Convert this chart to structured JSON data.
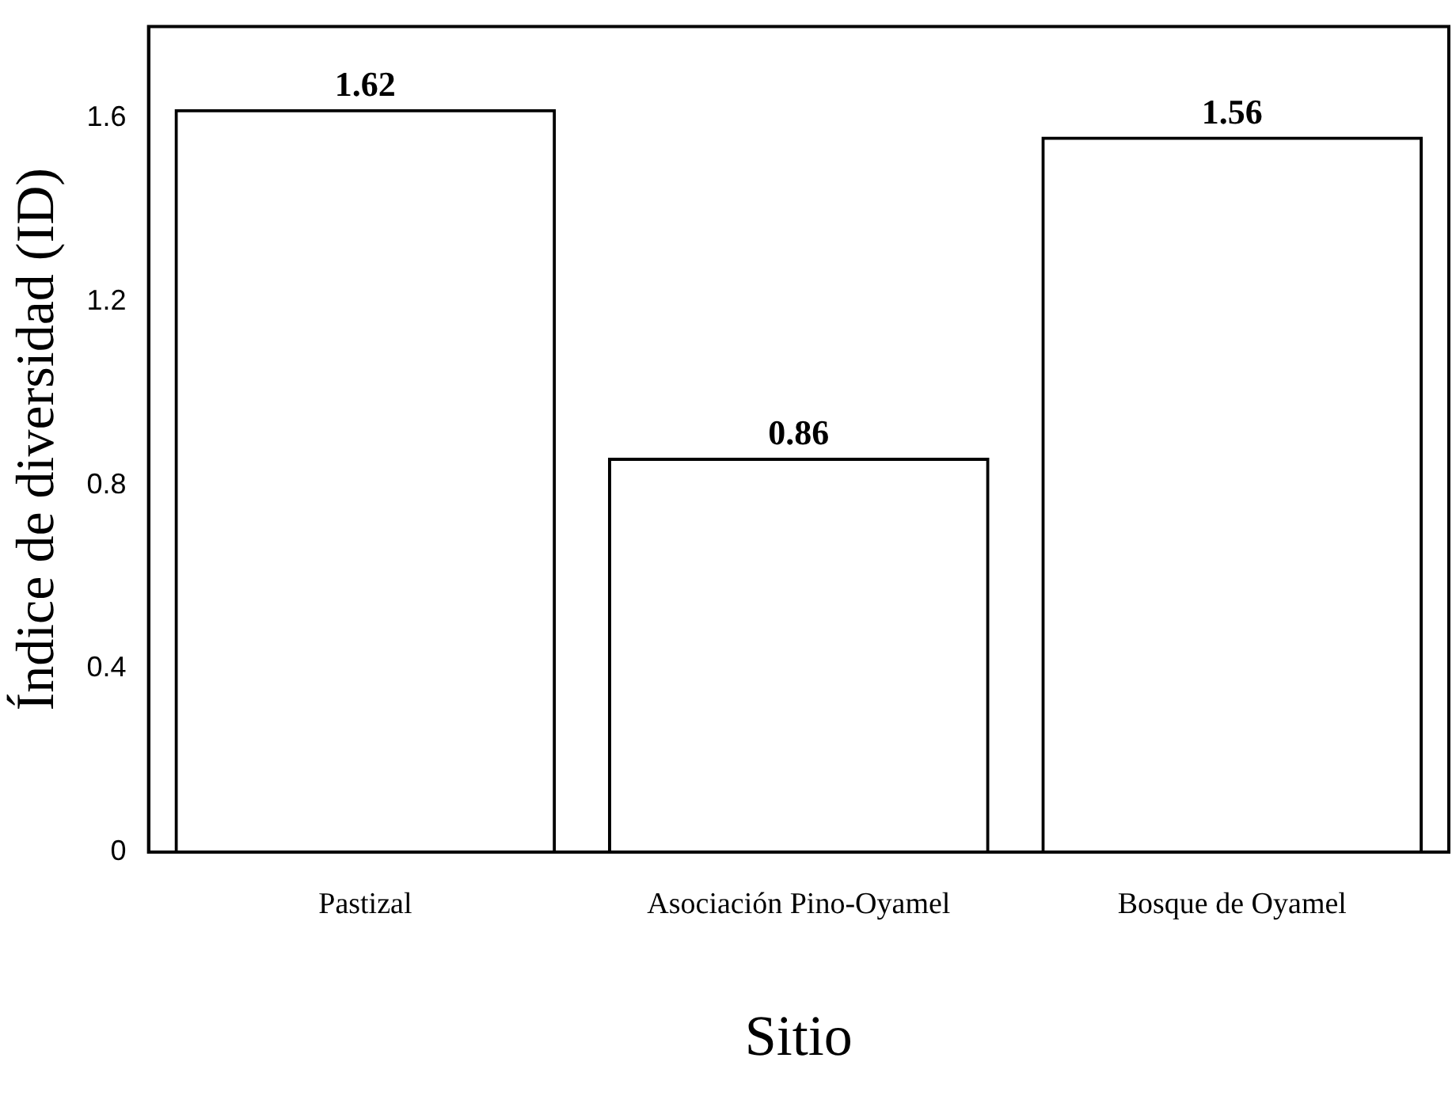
{
  "chart_data": {
    "type": "bar",
    "xlabel": "Sitio",
    "ylabel": "Índice de diversidad (ID)",
    "categories": [
      "Pastizal",
      "Asociación Pino-Oyamel",
      "Bosque de Oyamel"
    ],
    "values": [
      1.62,
      0.86,
      1.56
    ],
    "color": "#000000",
    "ylim": [
      0,
      1.8
    ],
    "yticks": [
      {
        "value": 0,
        "label": "0"
      },
      {
        "value": 0.4,
        "label": "0.4"
      },
      {
        "value": 0.8,
        "label": "0.8"
      },
      {
        "value": 1.2,
        "label": "1.2"
      },
      {
        "value": 1.6,
        "label": "1.6"
      }
    ],
    "grid": false,
    "legend": false,
    "data_labels": true
  }
}
